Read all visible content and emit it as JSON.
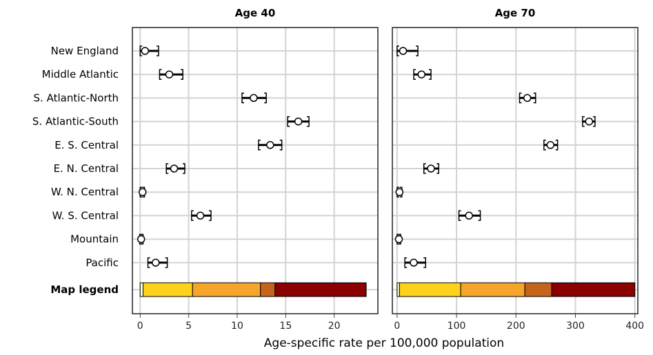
{
  "chart_data": {
    "type": "dot-interval",
    "xlabel": "Age-specific rate per 100,000 population",
    "rows": [
      "New England",
      "Middle Atlantic",
      "S. Atlantic-North",
      "S. Atlantic-South",
      "E. S. Central",
      "E. N. Central",
      "W. N. Central",
      "W. S. Central",
      "Mountain",
      "Pacific"
    ],
    "legend_row_label": "Map legend",
    "grid": true,
    "panels": [
      {
        "title": "Age 40",
        "xlim": [
          -0.8,
          24.5
        ],
        "ticks": [
          0,
          5,
          10,
          15,
          20
        ],
        "series": [
          {
            "region": "New England",
            "estimate": 0.5,
            "lower": 0.0,
            "upper": 1.9
          },
          {
            "region": "Middle Atlantic",
            "estimate": 3.0,
            "lower": 2.0,
            "upper": 4.4
          },
          {
            "region": "S. Atlantic-North",
            "estimate": 11.7,
            "lower": 10.5,
            "upper": 13.0
          },
          {
            "region": "S. Atlantic-South",
            "estimate": 16.3,
            "lower": 15.2,
            "upper": 17.4
          },
          {
            "region": "E. S. Central",
            "estimate": 13.4,
            "lower": 12.2,
            "upper": 14.6
          },
          {
            "region": "E. N. Central",
            "estimate": 3.5,
            "lower": 2.7,
            "upper": 4.6
          },
          {
            "region": "W. N. Central",
            "estimate": 0.25,
            "lower": 0.0,
            "upper": 0.45
          },
          {
            "region": "W. S. Central",
            "estimate": 6.2,
            "lower": 5.3,
            "upper": 7.3
          },
          {
            "region": "Mountain",
            "estimate": 0.1,
            "lower": -0.05,
            "upper": 0.3
          },
          {
            "region": "Pacific",
            "estimate": 1.6,
            "lower": 0.8,
            "upper": 2.8
          }
        ],
        "legend_bins": [
          {
            "from": 0.0,
            "to": 0.3,
            "color": "#ffffd4"
          },
          {
            "from": 0.3,
            "to": 5.4,
            "color": "#fdd21a"
          },
          {
            "from": 5.4,
            "to": 12.4,
            "color": "#f4a52a"
          },
          {
            "from": 12.4,
            "to": 13.9,
            "color": "#c5651c"
          },
          {
            "from": 13.9,
            "to": 23.3,
            "color": "#8b0000"
          }
        ]
      },
      {
        "title": "Age 70",
        "xlim": [
          -8,
          405
        ],
        "ticks": [
          0,
          100,
          200,
          300,
          400
        ],
        "series": [
          {
            "region": "New England",
            "estimate": 10,
            "lower": 0,
            "upper": 35
          },
          {
            "region": "Middle Atlantic",
            "estimate": 41,
            "lower": 28,
            "upper": 57
          },
          {
            "region": "S. Atlantic-North",
            "estimate": 219,
            "lower": 206,
            "upper": 233
          },
          {
            "region": "S. Atlantic-South",
            "estimate": 323,
            "lower": 312,
            "upper": 333
          },
          {
            "region": "E. S. Central",
            "estimate": 258,
            "lower": 247,
            "upper": 270
          },
          {
            "region": "E. N. Central",
            "estimate": 57,
            "lower": 45,
            "upper": 70
          },
          {
            "region": "W. N. Central",
            "estimate": 4,
            "lower": 0,
            "upper": 8
          },
          {
            "region": "W. S. Central",
            "estimate": 121,
            "lower": 104,
            "upper": 140
          },
          {
            "region": "Mountain",
            "estimate": 3,
            "lower": 0,
            "upper": 6
          },
          {
            "region": "Pacific",
            "estimate": 28,
            "lower": 13,
            "upper": 48
          }
        ],
        "legend_bins": [
          {
            "from": 0,
            "to": 4,
            "color": "#ffffd4"
          },
          {
            "from": 4,
            "to": 107,
            "color": "#fdd21a"
          },
          {
            "from": 107,
            "to": 215,
            "color": "#f4a52a"
          },
          {
            "from": 215,
            "to": 260,
            "color": "#c5651c"
          },
          {
            "from": 260,
            "to": 400,
            "color": "#8b0000"
          }
        ]
      }
    ]
  }
}
